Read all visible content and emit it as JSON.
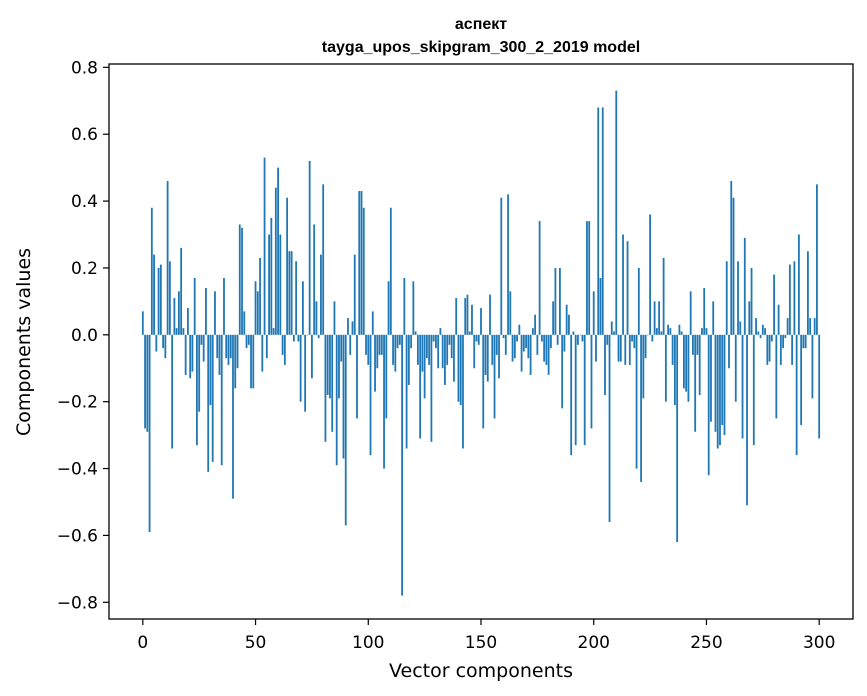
{
  "chart_data": {
    "type": "bar",
    "title_line1": "аспект",
    "title_line2": "tayga_upos_skipgram_300_2_2019 model",
    "xlabel": "Vector components",
    "ylabel": "Components values",
    "xlim": [
      -15,
      315
    ],
    "ylim": [
      -0.85,
      0.81
    ],
    "xticks": [
      0,
      50,
      100,
      150,
      200,
      250,
      300
    ],
    "xtick_labels": [
      "0",
      "50",
      "100",
      "150",
      "200",
      "250",
      "300"
    ],
    "yticks": [
      0.8,
      0.6,
      0.4,
      0.2,
      0.0,
      -0.2,
      -0.4,
      -0.6,
      -0.8
    ],
    "ytick_labels": [
      "0.8",
      "0.6",
      "0.4",
      "0.2",
      "0.0",
      "−0.2",
      "−0.4",
      "−0.6",
      "−0.8"
    ],
    "bar_color": "#1f77b4",
    "values": [
      0.07,
      -0.28,
      -0.29,
      -0.59,
      0.38,
      0.24,
      -0.05,
      0.2,
      0.21,
      -0.04,
      -0.07,
      0.46,
      0.22,
      -0.34,
      0.11,
      0.02,
      0.13,
      0.26,
      0.02,
      -0.12,
      0.08,
      -0.13,
      -0.11,
      0.17,
      -0.33,
      -0.23,
      -0.03,
      -0.08,
      0.14,
      -0.41,
      -0.21,
      -0.38,
      0.13,
      -0.07,
      -0.12,
      -0.39,
      0.17,
      -0.07,
      -0.09,
      -0.07,
      -0.49,
      -0.16,
      -0.1,
      0.33,
      0.32,
      0.07,
      -0.04,
      -0.03,
      -0.16,
      -0.16,
      0.16,
      0.13,
      0.23,
      -0.11,
      0.53,
      -0.07,
      0.3,
      0.35,
      0.02,
      0.44,
      0.5,
      0.3,
      -0.06,
      -0.09,
      0.41,
      0.25,
      0.25,
      -0.02,
      0.22,
      -0.02,
      -0.2,
      0.16,
      -0.23,
      0.0,
      0.52,
      -0.13,
      0.33,
      0.1,
      -0.01,
      0.24,
      0.45,
      -0.32,
      -0.18,
      -0.19,
      -0.29,
      0.1,
      -0.39,
      -0.19,
      -0.08,
      -0.37,
      -0.57,
      0.05,
      -0.06,
      0.04,
      0.24,
      -0.25,
      0.43,
      0.43,
      0.38,
      -0.06,
      -0.09,
      -0.36,
      0.07,
      -0.17,
      -0.1,
      -0.06,
      -0.06,
      -0.4,
      -0.25,
      0.16,
      0.38,
      -0.09,
      -0.11,
      -0.04,
      -0.03,
      -0.78,
      0.17,
      -0.34,
      -0.15,
      -0.04,
      0.16,
      0.01,
      -0.09,
      -0.31,
      -0.11,
      -0.19,
      -0.07,
      -0.09,
      -0.32,
      -0.02,
      -0.04,
      -0.1,
      0.02,
      -0.1,
      -0.15,
      -0.09,
      -0.03,
      -0.07,
      -0.14,
      0.11,
      -0.2,
      -0.21,
      -0.34,
      0.11,
      0.12,
      0.01,
      0.09,
      -0.1,
      -0.02,
      -0.03,
      0.08,
      -0.28,
      -0.12,
      -0.14,
      0.12,
      -0.09,
      -0.25,
      -0.06,
      -0.13,
      0.41,
      -0.01,
      -0.06,
      0.42,
      0.13,
      -0.08,
      -0.07,
      -0.02,
      0.03,
      -0.11,
      -0.05,
      -0.04,
      -0.07,
      -0.12,
      0.02,
      0.06,
      -0.06,
      0.34,
      -0.02,
      -0.08,
      -0.09,
      -0.12,
      -0.04,
      0.1,
      0.2,
      -0.03,
      0.2,
      -0.22,
      -0.05,
      0.09,
      0.06,
      -0.36,
      0.01,
      -0.33,
      -0.03,
      0.0,
      -0.02,
      -0.33,
      0.34,
      0.34,
      -0.28,
      0.13,
      -0.08,
      0.68,
      0.17,
      0.68,
      -0.18,
      -0.03,
      -0.56,
      0.04,
      0.01,
      0.73,
      -0.08,
      -0.08,
      0.3,
      -0.09,
      0.28,
      -0.09,
      -0.02,
      -0.04,
      -0.4,
      0.2,
      -0.44,
      -0.19,
      -0.07,
      0.0,
      0.36,
      -0.02,
      0.1,
      0.02,
      0.1,
      0.01,
      0.23,
      -0.2,
      0.03,
      0.02,
      -0.09,
      -0.21,
      -0.62,
      0.03,
      0.01,
      -0.16,
      -0.17,
      -0.2,
      0.13,
      -0.06,
      -0.29,
      -0.06,
      -0.18,
      0.02,
      0.14,
      0.02,
      -0.42,
      -0.26,
      0.1,
      -0.29,
      -0.34,
      -0.33,
      -0.27,
      -0.3,
      0.22,
      -0.1,
      0.46,
      0.41,
      -0.2,
      0.22,
      0.04,
      -0.31,
      0.29,
      -0.51,
      0.1,
      0.2,
      -0.33,
      0.05,
      0.01,
      -0.01,
      0.03,
      0.02,
      -0.09,
      -0.08,
      -0.02,
      0.18,
      -0.25,
      0.09,
      -0.09,
      -0.04,
      -0.01,
      0.05,
      0.21,
      -0.09,
      0.22,
      -0.36,
      0.3,
      -0.27,
      -0.04,
      -0.04,
      0.25,
      0.05,
      -0.19,
      0.05,
      0.45,
      -0.31
    ]
  }
}
